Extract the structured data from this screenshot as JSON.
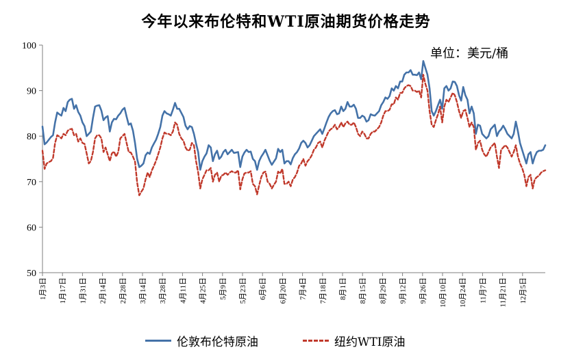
{
  "chart_data": {
    "type": "line",
    "title": "今年以来布伦特和WTI原油期货价格走势",
    "unit_label": "单位：美元/桶",
    "xlabel": "",
    "ylabel": "",
    "ylim": [
      50,
      100
    ],
    "y_ticks": [
      "50",
      "60",
      "70",
      "80",
      "90",
      "100"
    ],
    "x_ticks": [
      "1月3日",
      "1月17日",
      "1月31日",
      "2月14日",
      "2月28日",
      "3月14日",
      "3月28日",
      "4月11日",
      "4月25日",
      "5月9日",
      "5月23日",
      "6月6日",
      "6月20日",
      "7月4日",
      "7月18日",
      "8月1日",
      "8月15日",
      "8月29日",
      "9月12日",
      "9月26日",
      "10月10日",
      "10月24日",
      "11月7日",
      "11月21日",
      "12月5日"
    ],
    "grid": false,
    "legend_position": "bottom",
    "colors": {
      "brent": "#4472a8",
      "wti": "#c0392b"
    },
    "series": [
      {
        "name": "伦敦布伦特原油",
        "style": "solid",
        "values": [
          82.1,
          78.2,
          78.6,
          79.2,
          79.8,
          80.2,
          83.0,
          85.2,
          84.8,
          84.5,
          86.2,
          85.5,
          87.5,
          88.0,
          88.2,
          86.0,
          86.8,
          85.3,
          84.5,
          83.0,
          82.2,
          80.0,
          80.5,
          81.0,
          84.0,
          86.5,
          86.7,
          86.8,
          85.6,
          83.5,
          84.1,
          84.4,
          81.0,
          83.0,
          83.8,
          83.7,
          84.5,
          85.0,
          85.8,
          86.2,
          84.3,
          82.5,
          82.8,
          81.2,
          78.5,
          75.0,
          73.2,
          73.5,
          74.0,
          75.8,
          76.4,
          76.1,
          77.5,
          78.4,
          79.2,
          80.5,
          82.0,
          84.5,
          85.5,
          85.0,
          84.8,
          84.5,
          85.8,
          87.3,
          86.0,
          86.0,
          85.1,
          84.2,
          82.3,
          81.5,
          82.2,
          82.0,
          80.5,
          78.4,
          76.5,
          72.6,
          74.5,
          75.5,
          76.2,
          78.0,
          77.5,
          74.5,
          76.0,
          76.8,
          75.0,
          75.5,
          76.5,
          77.0,
          76.0,
          76.5,
          77.0,
          76.3,
          76.4,
          76.5,
          73.2,
          75.5,
          76.4,
          77.0,
          76.5,
          76.6,
          75.0,
          74.5,
          72.6,
          74.5,
          75.5,
          76.2,
          77.0,
          75.8,
          74.6,
          73.7,
          74.4,
          75.1,
          77.2,
          76.5,
          77.0,
          74.0,
          74.5,
          74.5,
          73.8,
          75.2,
          76.0,
          76.5,
          77.3,
          78.5,
          79.0,
          78.5,
          77.5,
          78.0,
          79.0,
          80.0,
          80.5,
          81.0,
          81.5,
          80.5,
          81.7,
          83.0,
          84.2,
          85.0,
          85.5,
          85.7,
          84.8,
          85.0,
          86.5,
          85.5,
          86.0,
          87.5,
          86.5,
          86.5,
          86.9,
          86.0,
          84.0,
          84.0,
          84.5,
          84.2,
          83.2,
          83.5,
          84.8,
          84.6,
          84.5,
          85.0,
          85.5,
          86.8,
          87.5,
          88.5,
          88.2,
          88.8,
          90.5,
          90.0,
          91.0,
          90.5,
          92.0,
          92.0,
          93.5,
          94.0,
          94.0,
          94.5,
          93.5,
          93.5,
          93.4,
          94.0,
          92.5,
          96.5,
          95.0,
          93.5,
          90.5,
          85.5,
          84.5,
          85.5,
          86.8,
          88.0,
          86.0,
          90.5,
          91.0,
          90.0,
          90.5,
          92.0,
          91.9,
          91.0,
          89.0,
          87.8,
          90.8,
          89.0,
          88.0,
          85.0,
          86.5,
          85.0,
          80.5,
          82.5,
          82.3,
          80.5,
          80.0,
          79.5,
          80.0,
          81.5,
          82.0,
          82.5,
          80.0,
          81.0,
          81.5,
          82.3,
          81.5,
          80.5,
          80.0,
          79.5,
          80.5,
          83.2,
          81.0,
          78.5,
          77.0,
          75.5,
          74.0,
          76.0,
          76.5,
          74.0,
          75.5,
          76.5,
          76.8,
          76.8,
          77.0,
          78.0
        ]
      },
      {
        "name": "纽约WTI原油",
        "style": "dashed",
        "values": [
          76.8,
          72.8,
          74.0,
          74.3,
          74.5,
          75.2,
          78.5,
          80.2,
          79.9,
          79.5,
          80.5,
          80.2,
          81.2,
          81.5,
          81.6,
          80.2,
          80.5,
          78.8,
          79.5,
          78.5,
          78.3,
          76.2,
          74.0,
          74.5,
          76.5,
          79.5,
          80.2,
          80.2,
          79.5,
          76.5,
          77.5,
          76.0,
          74.5,
          76.2,
          76.6,
          75.5,
          76.5,
          79.5,
          80.0,
          80.5,
          78.5,
          76.5,
          76.4,
          75.5,
          74.4,
          69.8,
          67.0,
          67.8,
          68.5,
          70.5,
          72.0,
          71.0,
          72.5,
          73.5,
          74.6,
          76.0,
          77.5,
          79.5,
          80.8,
          80.5,
          80.5,
          80.2,
          81.0,
          83.0,
          82.5,
          80.5,
          79.5,
          79.0,
          77.5,
          76.8,
          77.0,
          78.5,
          78.0,
          74.5,
          72.0,
          68.5,
          70.5,
          71.5,
          72.5,
          72.5,
          73.0,
          70.0,
          71.5,
          72.0,
          70.0,
          71.3,
          71.5,
          72.0,
          71.5,
          72.0,
          72.3,
          72.0,
          72.0,
          72.5,
          68.3,
          70.5,
          71.8,
          72.0,
          72.0,
          72.3,
          69.5,
          69.0,
          67.2,
          69.2,
          71.0,
          72.0,
          72.2,
          70.0,
          69.5,
          68.5,
          69.3,
          70.0,
          72.2,
          71.8,
          72.8,
          69.5,
          69.5,
          70.0,
          69.0,
          70.5,
          71.0,
          72.0,
          73.5,
          74.0,
          75.0,
          73.5,
          74.5,
          75.0,
          75.8,
          77.0,
          77.5,
          78.5,
          78.8,
          77.5,
          79.0,
          80.0,
          81.0,
          81.5,
          81.8,
          82.5,
          81.5,
          82.0,
          83.0,
          82.0,
          82.8,
          83.2,
          82.5,
          82.5,
          83.0,
          82.0,
          80.5,
          80.0,
          81.0,
          80.5,
          79.5,
          79.5,
          80.5,
          81.0,
          81.0,
          81.5,
          82.0,
          83.0,
          84.5,
          85.5,
          85.5,
          85.8,
          87.0,
          87.0,
          88.5,
          88.0,
          89.5,
          89.5,
          90.5,
          91.0,
          91.2,
          91.0,
          90.0,
          90.0,
          89.7,
          90.0,
          88.5,
          93.5,
          91.5,
          90.0,
          85.5,
          82.5,
          82.0,
          83.5,
          84.8,
          86.5,
          83.0,
          86.5,
          88.0,
          87.5,
          88.5,
          89.5,
          89.0,
          87.5,
          85.5,
          84.0,
          85.5,
          85.8,
          84.0,
          82.0,
          83.0,
          82.0,
          77.0,
          78.5,
          79.0,
          77.0,
          76.0,
          75.5,
          76.5,
          77.5,
          78.0,
          78.5,
          75.5,
          73.0,
          77.0,
          77.5,
          78.0,
          77.5,
          76.5,
          75.5,
          76.5,
          78.0,
          75.5,
          74.0,
          73.0,
          71.5,
          69.0,
          71.0,
          71.5,
          68.5,
          70.5,
          71.0,
          71.3,
          72.0,
          72.3,
          72.5
        ]
      }
    ]
  }
}
